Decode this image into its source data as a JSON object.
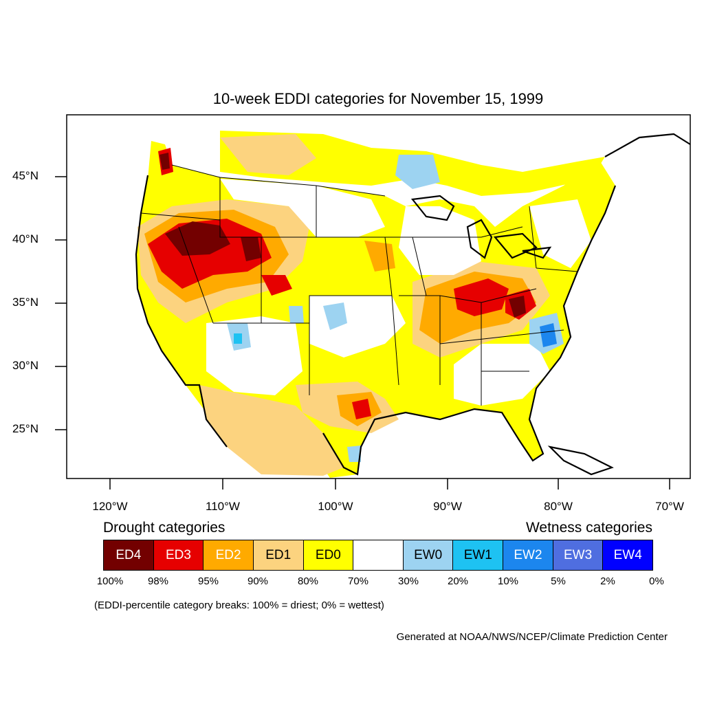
{
  "title": "10-week EDDI categories for November 15, 1999",
  "map": {
    "lat_labels": [
      "45°N",
      "40°N",
      "35°N",
      "30°N",
      "25°N"
    ],
    "lon_labels": [
      "120°W",
      "110°W",
      "100°W",
      "90°W",
      "80°W",
      "70°W"
    ]
  },
  "legend": {
    "drought_heading": "Drought categories",
    "wetness_heading": "Wetness categories",
    "categories": [
      {
        "label": "ED4",
        "color": "#730000",
        "text_color": "#ffffff"
      },
      {
        "label": "ED3",
        "color": "#e60000",
        "text_color": "#ffffff"
      },
      {
        "label": "ED2",
        "color": "#ffaa00",
        "text_color": "#ffffff"
      },
      {
        "label": "ED1",
        "color": "#fcd37f",
        "text_color": "#000000"
      },
      {
        "label": "ED0",
        "color": "#ffff00",
        "text_color": "#000000"
      },
      {
        "label": "",
        "color": "#ffffff",
        "text_color": "#000000"
      },
      {
        "label": "EW0",
        "color": "#9dd3f1",
        "text_color": "#000000"
      },
      {
        "label": "EW1",
        "color": "#1ec2f2",
        "text_color": "#000000"
      },
      {
        "label": "EW2",
        "color": "#1c86ee",
        "text_color": "#ffffff"
      },
      {
        "label": "EW3",
        "color": "#4f6ee0",
        "text_color": "#ffffff"
      },
      {
        "label": "EW4",
        "color": "#0000ff",
        "text_color": "#ffffff"
      }
    ],
    "ticks": [
      "100%",
      "98%",
      "95%",
      "90%",
      "80%",
      "70%",
      "30%",
      "20%",
      "10%",
      "5%",
      "2%",
      "0%"
    ]
  },
  "note": "(EDDI-percentile category breaks: 100% = driest; 0% = wettest)",
  "credit": "Generated at NOAA/NWS/NCEP/Climate Prediction Center"
}
